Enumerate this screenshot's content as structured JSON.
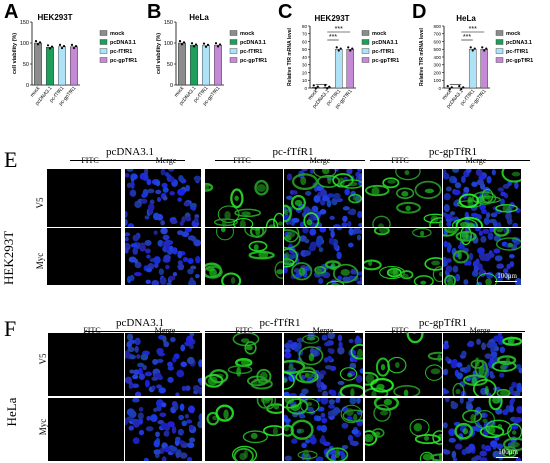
{
  "panels": {
    "A": "A",
    "B": "B",
    "C": "C",
    "D": "D",
    "E": "E",
    "F": "F"
  },
  "legend": {
    "items": [
      "mock",
      "pcDNA3.1",
      "pc-fTfR1",
      "pc-gpTfR1"
    ],
    "colors": [
      "#8c8c8c",
      "#1f9e5a",
      "#aee3f7",
      "#c48ad6"
    ]
  },
  "chart_data": [
    {
      "type": "bar",
      "title": "HEK293T",
      "ylabel": "cell viability (%)",
      "categories": [
        "mock",
        "pcDNA3.1",
        "pc-fTfR1",
        "pc-gpTfR1"
      ],
      "values": [
        100,
        90,
        91,
        91
      ],
      "ylim": [
        0,
        150
      ],
      "yticks": [
        "0",
        "50",
        "100",
        "150"
      ],
      "significance": []
    },
    {
      "type": "bar",
      "title": "HeLa",
      "ylabel": "cell viability (%)",
      "categories": [
        "mock",
        "pcDNA3.1",
        "pc-fTfR1",
        "pc-gpTfR1"
      ],
      "values": [
        100,
        95,
        94,
        95
      ],
      "ylim": [
        0,
        150
      ],
      "yticks": [
        "0",
        "50",
        "100",
        "150"
      ],
      "significance": []
    },
    {
      "type": "bar",
      "title": "HEK293T",
      "ylabel": "Relative TfR mRNA level",
      "categories": [
        "mock",
        "pcDNA3.1",
        "pc-fTfR1",
        "pc-gpTfR1"
      ],
      "values": [
        1,
        0.9,
        50,
        50
      ],
      "ylim": [
        0,
        80
      ],
      "yticks": [
        "0",
        "10",
        "20",
        "30",
        "40",
        "50",
        "60",
        "70",
        "80"
      ],
      "significance": [
        "***",
        "***"
      ]
    },
    {
      "type": "bar",
      "title": "HeLa",
      "ylabel": "Relative TfR mRNA level",
      "categories": [
        "mock",
        "pcDNA3.1",
        "pc-fTfR1",
        "pc-gpTfR1"
      ],
      "values": [
        1,
        0.9,
        500,
        500
      ],
      "ylim": [
        0,
        800
      ],
      "yticks": [
        "0",
        "100",
        "200",
        "300",
        "400",
        "500",
        "600",
        "700",
        "800"
      ],
      "significance": [
        "***",
        "***"
      ]
    }
  ],
  "micrographs": {
    "E": {
      "groups": [
        "pcDNA3.1",
        "pc-fTfR1",
        "pc-gpTfR1"
      ],
      "sub": [
        "FITC",
        "Merge"
      ],
      "rows": [
        "V5",
        "Myc"
      ],
      "cell_line": "HEK293T",
      "scale": "100μm"
    },
    "F": {
      "groups": [
        "pcDNA3.1",
        "pc-fTfR1",
        "pc-gpTfR1"
      ],
      "sub": [
        "FITC",
        "Merge"
      ],
      "rows": [
        "V5",
        "Myc"
      ],
      "cell_line": "HeLa",
      "scale": "100μm"
    }
  }
}
